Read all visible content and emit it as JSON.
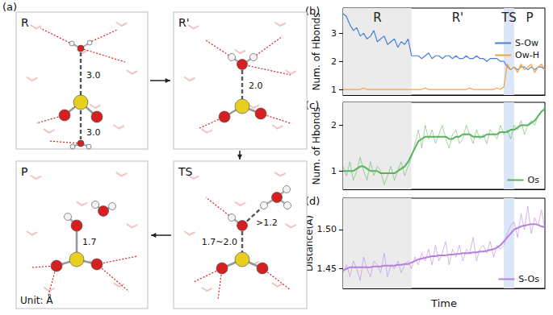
{
  "figure_a": {
    "label": "(a)",
    "snapshots": [
      {
        "label": "R",
        "distances": [
          "3.0",
          "3.0"
        ]
      },
      {
        "label": "R'",
        "distances": [
          "2.0"
        ]
      },
      {
        "label": "TS",
        "distances": [
          ">1.2",
          "1.7~2.0"
        ]
      },
      {
        "label": "P",
        "distances": [
          "1.7"
        ]
      }
    ],
    "unit_note": "Unit: Å"
  },
  "chart_data": [
    {
      "panel": "(b)",
      "type": "line",
      "ylabel": "Num. of Hbonds",
      "x": [
        0,
        1,
        2,
        3,
        4,
        5,
        6,
        7,
        8,
        9,
        10,
        11,
        12,
        13,
        14,
        15,
        16,
        17,
        18,
        19,
        20,
        21,
        22,
        23,
        24,
        25,
        26,
        27,
        28,
        29,
        30,
        31,
        32,
        33,
        34,
        35,
        36,
        37,
        38,
        39,
        40,
        41,
        42,
        43,
        44,
        45,
        46,
        47,
        48,
        49,
        50,
        51,
        52,
        53,
        54,
        55,
        56,
        57,
        58,
        59
      ],
      "xlim": [
        0,
        59
      ],
      "ylim": [
        0.8,
        3.9
      ],
      "yticks": [
        1,
        2,
        3
      ],
      "tick_labels": "y",
      "grid": false,
      "legend": "right",
      "regions": [
        {
          "label": "R",
          "start": 0,
          "end": 20,
          "color": "#ebebeb"
        },
        {
          "label": "R'",
          "start": 20,
          "end": 47
        },
        {
          "label": "TS",
          "start": 47,
          "end": 50,
          "color": "#dbe6f6"
        },
        {
          "label": "P",
          "start": 50,
          "end": 59
        }
      ],
      "series": [
        {
          "name": "S-Ow",
          "color": "#4a7fd6",
          "values": [
            3.7,
            3.6,
            3.3,
            3.1,
            3.2,
            2.9,
            3.0,
            2.8,
            2.9,
            3.1,
            2.7,
            2.8,
            2.9,
            2.6,
            2.7,
            2.8,
            2.5,
            2.7,
            2.6,
            2.8,
            2.2,
            2.2,
            2.2,
            2.1,
            2.2,
            2.3,
            2.1,
            2.2,
            2.2,
            2.1,
            2.2,
            2.2,
            2.1,
            2.2,
            2.1,
            2.1,
            2.2,
            2.1,
            2.1,
            2.2,
            2.1,
            2.1,
            2.0,
            2.1,
            2.1,
            2.1,
            2.0,
            2.0,
            1.8,
            1.7,
            1.8,
            1.7,
            1.8,
            1.8,
            1.7,
            1.8,
            1.7,
            1.8,
            1.8,
            1.7
          ]
        },
        {
          "name": "Ow-H",
          "color": "#f5a142",
          "values": [
            1.0,
            1.0,
            1.0,
            1.0,
            1.0,
            1.0,
            1.05,
            1.0,
            1.0,
            1.0,
            1.0,
            1.0,
            1.0,
            1.0,
            1.0,
            1.0,
            1.0,
            1.0,
            1.0,
            1.0,
            1.0,
            1.0,
            1.0,
            1.0,
            1.05,
            1.0,
            1.0,
            1.0,
            1.0,
            1.0,
            1.0,
            1.0,
            1.0,
            1.0,
            1.0,
            1.0,
            1.0,
            1.05,
            1.0,
            1.0,
            1.0,
            1.0,
            1.0,
            1.0,
            1.0,
            1.05,
            1.0,
            1.1,
            1.9,
            1.7,
            1.8,
            1.6,
            1.9,
            1.7,
            1.8,
            1.9,
            1.6,
            1.8,
            1.9,
            1.7
          ]
        }
      ]
    },
    {
      "panel": "(c)",
      "type": "line",
      "ylabel": "Num. of Hbonds",
      "x": [
        0,
        1,
        2,
        3,
        4,
        5,
        6,
        7,
        8,
        9,
        10,
        11,
        12,
        13,
        14,
        15,
        16,
        17,
        18,
        19,
        20,
        21,
        22,
        23,
        24,
        25,
        26,
        27,
        28,
        29,
        30,
        31,
        32,
        33,
        34,
        35,
        36,
        37,
        38,
        39,
        40,
        41,
        42,
        43,
        44,
        45,
        46,
        47,
        48,
        49,
        50,
        51,
        52,
        53,
        54,
        55,
        56,
        57,
        58,
        59
      ],
      "xlim": [
        0,
        59
      ],
      "ylim": [
        0.6,
        2.5
      ],
      "yticks": [
        1,
        2
      ],
      "tick_labels": "y",
      "grid": false,
      "legend": "lower right",
      "regions": [
        {
          "start": 0,
          "end": 20,
          "color": "#ebebeb"
        },
        {
          "start": 47,
          "end": 50,
          "color": "#dbe6f6"
        }
      ],
      "series": [
        {
          "name": "Os",
          "color": "#58b35a",
          "values": [
            1.1,
            0.9,
            1.2,
            0.8,
            1.0,
            1.3,
            1.0,
            0.8,
            1.2,
            0.9,
            1.1,
            1.0,
            0.7,
            0.9,
            1.1,
            0.8,
            1.0,
            1.2,
            0.9,
            1.1,
            1.3,
            1.6,
            1.9,
            1.5,
            2.0,
            1.7,
            1.9,
            1.6,
            1.8,
            2.0,
            1.7,
            1.5,
            1.8,
            1.9,
            1.6,
            1.7,
            2.0,
            1.8,
            1.6,
            1.9,
            1.7,
            1.8,
            1.6,
            1.9,
            1.8,
            1.7,
            2.0,
            1.8,
            1.9,
            1.7,
            2.0,
            1.9,
            2.1,
            1.8,
            2.0,
            2.1,
            2.0,
            2.2,
            2.3,
            2.4
          ],
          "smoothed": [
            1.0,
            1.0,
            1.0,
            1.0,
            1.05,
            1.1,
            1.1,
            1.05,
            1.0,
            1.0,
            1.0,
            0.95,
            0.95,
            0.95,
            0.95,
            0.95,
            1.0,
            1.05,
            1.1,
            1.2,
            1.35,
            1.5,
            1.65,
            1.7,
            1.75,
            1.75,
            1.75,
            1.75,
            1.75,
            1.75,
            1.75,
            1.7,
            1.7,
            1.75,
            1.75,
            1.8,
            1.8,
            1.8,
            1.75,
            1.75,
            1.75,
            1.75,
            1.8,
            1.8,
            1.8,
            1.8,
            1.85,
            1.85,
            1.85,
            1.9,
            1.9,
            1.95,
            2.0,
            2.0,
            2.0,
            2.05,
            2.1,
            2.2,
            2.3,
            2.35
          ]
        }
      ]
    },
    {
      "panel": "(d)",
      "type": "line",
      "ylabel": "Distance(Å)",
      "xlabel": "Time",
      "x": [
        0,
        1,
        2,
        3,
        4,
        5,
        6,
        7,
        8,
        9,
        10,
        11,
        12,
        13,
        14,
        15,
        16,
        17,
        18,
        19,
        20,
        21,
        22,
        23,
        24,
        25,
        26,
        27,
        28,
        29,
        30,
        31,
        32,
        33,
        34,
        35,
        36,
        37,
        38,
        39,
        40,
        41,
        42,
        43,
        44,
        45,
        46,
        47,
        48,
        49,
        50,
        51,
        52,
        53,
        54,
        55,
        56,
        57,
        58,
        59
      ],
      "xlim": [
        0,
        59
      ],
      "ylim": [
        1.425,
        1.54
      ],
      "yticks": [
        1.45,
        {
          "value": 1.5,
          "label": "1.50"
        }
      ],
      "tick_labels": "y",
      "grid": false,
      "legend": "lower right",
      "regions": [
        {
          "start": 0,
          "end": 20,
          "color": "#ebebeb"
        },
        {
          "start": 47,
          "end": 50,
          "color": "#dbe6f6"
        }
      ],
      "series": [
        {
          "name": "S-Os",
          "color": "#b580db",
          "values": [
            1.445,
            1.455,
            1.44,
            1.46,
            1.45,
            1.435,
            1.465,
            1.45,
            1.44,
            1.46,
            1.455,
            1.445,
            1.47,
            1.44,
            1.455,
            1.45,
            1.46,
            1.445,
            1.455,
            1.46,
            1.45,
            1.465,
            1.455,
            1.47,
            1.46,
            1.475,
            1.455,
            1.48,
            1.46,
            1.47,
            1.485,
            1.455,
            1.475,
            1.465,
            1.48,
            1.46,
            1.475,
            1.47,
            1.49,
            1.46,
            1.475,
            1.48,
            1.47,
            1.485,
            1.465,
            1.48,
            1.475,
            1.48,
            1.495,
            1.505,
            1.51,
            1.49,
            1.52,
            1.5,
            1.53,
            1.495,
            1.515,
            1.505,
            1.525,
            1.5
          ],
          "smoothed": [
            1.448,
            1.45,
            1.452,
            1.452,
            1.452,
            1.452,
            1.452,
            1.452,
            1.452,
            1.453,
            1.453,
            1.453,
            1.454,
            1.454,
            1.454,
            1.454,
            1.455,
            1.455,
            1.456,
            1.456,
            1.458,
            1.46,
            1.462,
            1.463,
            1.464,
            1.465,
            1.466,
            1.466,
            1.467,
            1.467,
            1.467,
            1.468,
            1.468,
            1.469,
            1.469,
            1.47,
            1.47,
            1.47,
            1.471,
            1.471,
            1.472,
            1.472,
            1.473,
            1.474,
            1.475,
            1.477,
            1.48,
            1.485,
            1.49,
            1.495,
            1.5,
            1.502,
            1.504,
            1.505,
            1.506,
            1.507,
            1.507,
            1.506,
            1.504,
            1.503
          ]
        }
      ]
    }
  ]
}
